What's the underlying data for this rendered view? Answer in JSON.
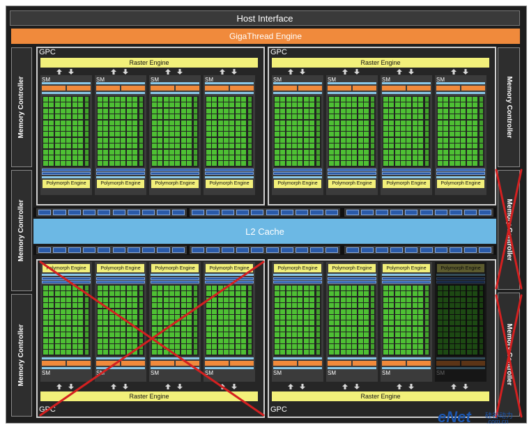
{
  "labels": {
    "host_interface": "Host Interface",
    "gigathread": "GigaThread Engine",
    "gpc": "GPC",
    "raster": "Raster Engine",
    "sm": "SM",
    "polymorph": "Polymorph Engine",
    "l2": "L2 Cache",
    "memory_controller": "Memory Controller"
  },
  "watermark": {
    "brand": "eNet",
    "suffix": "硅谷动力",
    "domain": ".com.cn"
  },
  "colors": {
    "background": "#1e1e1e",
    "bar": "#3a3a3a",
    "orange": "#f08a3c",
    "yellow": "#f2f07a",
    "green": "#4ec034",
    "blue_light": "#8ac8e8",
    "blue_dark": "#2a5aa8",
    "l2": "#6cb8e4",
    "disabled_cross": "#d42020",
    "watermark": "#1a55b0"
  },
  "status": {
    "disabled_gpcs": [
      "gpc-bottom-left"
    ],
    "disabled_sms": [
      "gpc-bottom-right-sm-4"
    ],
    "disabled_memory_controllers": [
      "memory-controller-right-middle",
      "memory-controller-right-bottom"
    ]
  }
}
